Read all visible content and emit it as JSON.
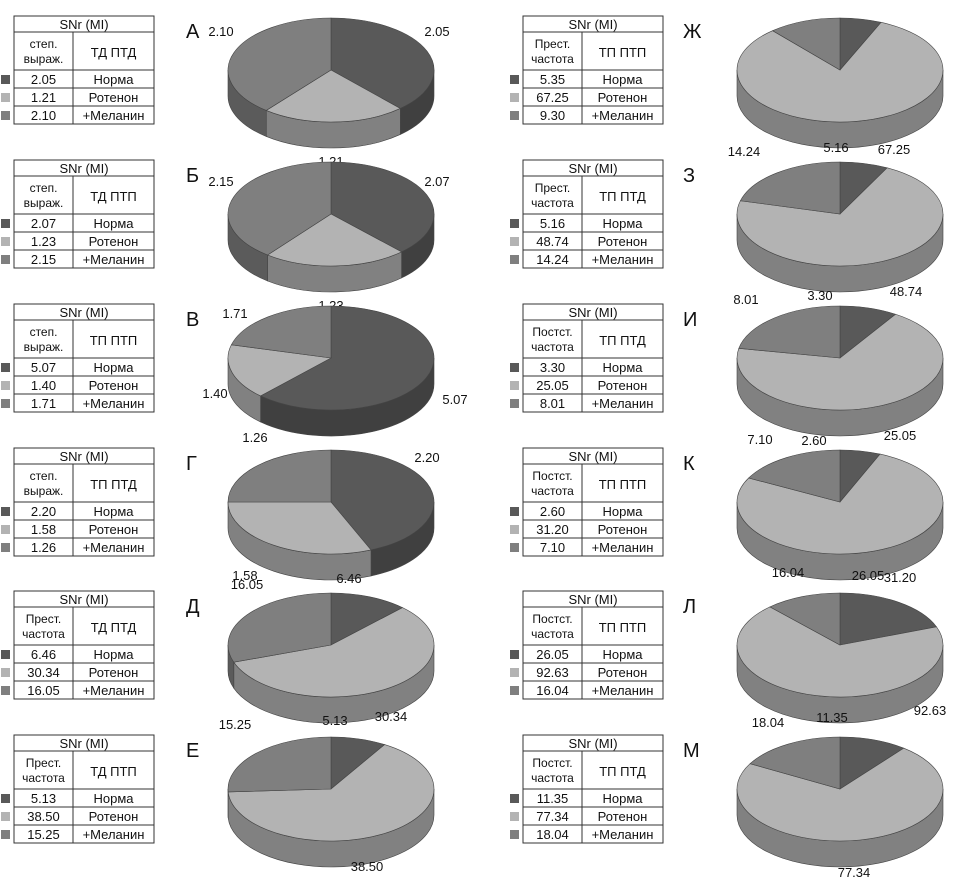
{
  "colors": {
    "norma": "#595959",
    "rotenon": "#b3b3b3",
    "melanin": "#7f7f7f"
  },
  "chart_data": [
    {
      "type": "pie",
      "panel": "А",
      "title": "SNr (MI)",
      "metric": "степ. выраж.",
      "group": "ТД ПТД",
      "categories": [
        "Норма",
        "Ротенон",
        "+Меланин"
      ],
      "values": [
        2.05,
        1.21,
        2.1
      ]
    },
    {
      "type": "pie",
      "panel": "Б",
      "title": "SNr (MI)",
      "metric": "степ. выраж.",
      "group": "ТД ПТП",
      "categories": [
        "Норма",
        "Ротенон",
        "+Меланин"
      ],
      "values": [
        2.07,
        1.23,
        2.15
      ]
    },
    {
      "type": "pie",
      "panel": "В",
      "title": "SNr (MI)",
      "metric": "степ. выраж.",
      "group": "ТП ПТП",
      "categories": [
        "Норма",
        "Ротенон",
        "+Меланин"
      ],
      "values": [
        5.07,
        1.4,
        1.71
      ]
    },
    {
      "type": "pie",
      "panel": "Г",
      "title": "SNr (MI)",
      "metric": "степ. выраж.",
      "group": "ТП ПТД",
      "categories": [
        "Норма",
        "Ротенон",
        "+Меланин"
      ],
      "values": [
        2.2,
        1.58,
        1.26
      ]
    },
    {
      "type": "pie",
      "panel": "Д",
      "title": "SNr (MI)",
      "metric": "Прест. частота",
      "group": "ТД ПТД",
      "categories": [
        "Норма",
        "Ротенон",
        "+Меланин"
      ],
      "values": [
        6.46,
        30.34,
        16.05
      ]
    },
    {
      "type": "pie",
      "panel": "Е",
      "title": "SNr (MI)",
      "metric": "Прест. частота",
      "group": "ТД ПТП",
      "categories": [
        "Норма",
        "Ротенон",
        "+Меланин"
      ],
      "values": [
        5.13,
        38.5,
        15.25
      ]
    },
    {
      "type": "pie",
      "panel": "Ж",
      "title": "SNr (MI)",
      "metric": "Прест. частота",
      "group": "ТП ПТП",
      "categories": [
        "Норма",
        "Ротенон",
        "+Меланин"
      ],
      "values": [
        5.35,
        67.25,
        9.3
      ]
    },
    {
      "type": "pie",
      "panel": "З",
      "title": "SNr (MI)",
      "metric": "Прест. частота",
      "group": "ТП ПТД",
      "categories": [
        "Норма",
        "Ротенон",
        "+Меланин"
      ],
      "values": [
        5.16,
        48.74,
        14.24
      ]
    },
    {
      "type": "pie",
      "panel": "И",
      "title": "SNr (MI)",
      "metric": "Постст. частота",
      "group": "ТП ПТД",
      "categories": [
        "Норма",
        "Ротенон",
        "+Меланин"
      ],
      "values": [
        3.3,
        25.05,
        8.01
      ]
    },
    {
      "type": "pie",
      "panel": "К",
      "title": "SNr (MI)",
      "metric": "Постст. частота",
      "group": "ТП ПТП",
      "categories": [
        "Норма",
        "Ротенон",
        "+Меланин"
      ],
      "values": [
        2.6,
        31.2,
        7.1
      ]
    },
    {
      "type": "pie",
      "panel": "Л",
      "title": "SNr (MI)",
      "metric": "Постст. частота",
      "group": "ТП ПТП",
      "categories": [
        "Норма",
        "Ротенон",
        "+Меланин"
      ],
      "values": [
        26.05,
        92.63,
        16.04
      ]
    },
    {
      "type": "pie",
      "panel": "М",
      "title": "SNr (MI)",
      "metric": "Постст. частота",
      "group": "ТП ПТД",
      "categories": [
        "Норма",
        "Ротенон",
        "+Меланин"
      ],
      "values": [
        11.35,
        77.34,
        18.04
      ]
    }
  ]
}
